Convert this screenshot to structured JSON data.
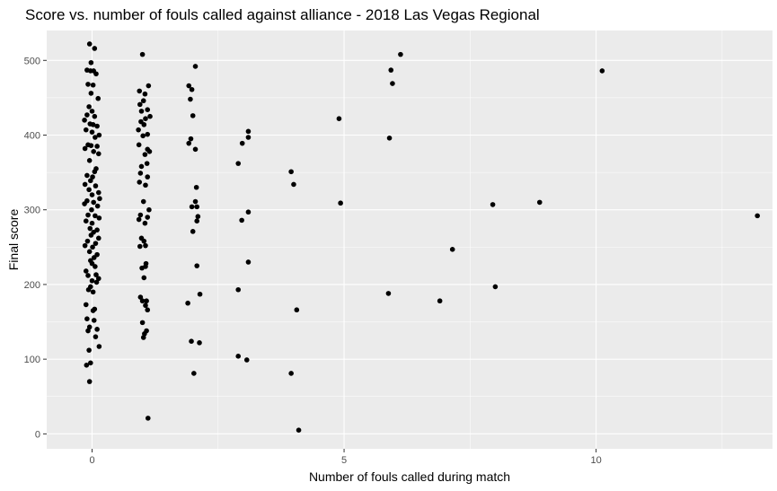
{
  "colors": {
    "panel": "#ebebeb",
    "grid_major": "#ffffff",
    "point": "#000000",
    "tick": "#333333"
  },
  "chart_data": {
    "type": "scatter",
    "title": "Score vs. number of fouls called against alliance - 2018 Las Vegas Regional",
    "xlabel": "Number of fouls called during match",
    "ylabel": "Final score",
    "xlim": [
      -0.9,
      13.5
    ],
    "ylim": [
      -20,
      540
    ],
    "xticks": [
      0,
      5,
      10
    ],
    "yticks": [
      0,
      100,
      200,
      300,
      400,
      500
    ],
    "grid": true,
    "legend": "none",
    "points": [
      [
        -0.05,
        522
      ],
      [
        0.05,
        516
      ],
      [
        -0.02,
        497
      ],
      [
        -0.1,
        487
      ],
      [
        -0.03,
        486
      ],
      [
        0.03,
        486
      ],
      [
        0.08,
        482
      ],
      [
        -0.08,
        468
      ],
      [
        0.02,
        467
      ],
      [
        -0.02,
        456
      ],
      [
        0.12,
        449
      ],
      [
        -0.06,
        438
      ],
      [
        0.0,
        432
      ],
      [
        -0.1,
        427
      ],
      [
        0.05,
        425
      ],
      [
        -0.15,
        420
      ],
      [
        -0.04,
        415
      ],
      [
        0.02,
        414
      ],
      [
        0.1,
        412
      ],
      [
        -0.12,
        407
      ],
      [
        0.0,
        404
      ],
      [
        0.14,
        400
      ],
      [
        0.06,
        397
      ],
      [
        -0.08,
        387
      ],
      [
        -0.02,
        386
      ],
      [
        0.1,
        385
      ],
      [
        -0.14,
        382
      ],
      [
        0.03,
        378
      ],
      [
        0.13,
        375
      ],
      [
        -0.05,
        366
      ],
      [
        0.08,
        355
      ],
      [
        0.05,
        351
      ],
      [
        -0.1,
        346
      ],
      [
        0.01,
        344
      ],
      [
        -0.03,
        339
      ],
      [
        -0.14,
        334
      ],
      [
        0.07,
        332
      ],
      [
        0.13,
        323
      ],
      [
        -0.06,
        327
      ],
      [
        0.0,
        320
      ],
      [
        -0.1,
        312
      ],
      [
        0.03,
        310
      ],
      [
        0.15,
        315
      ],
      [
        -0.15,
        308
      ],
      [
        0.11,
        305
      ],
      [
        -0.01,
        300
      ],
      [
        -0.08,
        293
      ],
      [
        0.06,
        292
      ],
      [
        0.14,
        289
      ],
      [
        -0.12,
        285
      ],
      [
        0.0,
        282
      ],
      [
        -0.04,
        275
      ],
      [
        0.1,
        273
      ],
      [
        0.03,
        270
      ],
      [
        -0.02,
        266
      ],
      [
        0.13,
        262
      ],
      [
        -0.09,
        258
      ],
      [
        0.07,
        255
      ],
      [
        -0.14,
        252
      ],
      [
        0.01,
        250
      ],
      [
        -0.05,
        244
      ],
      [
        0.1,
        240
      ],
      [
        0.04,
        236
      ],
      [
        -0.03,
        232
      ],
      [
        0.0,
        228
      ],
      [
        0.06,
        224
      ],
      [
        -0.12,
        218
      ],
      [
        0.08,
        213
      ],
      [
        -0.08,
        212
      ],
      [
        0.13,
        208
      ],
      [
        0.0,
        205
      ],
      [
        0.09,
        203
      ],
      [
        -0.03,
        197
      ],
      [
        -0.07,
        193
      ],
      [
        0.02,
        190
      ],
      [
        -0.12,
        173
      ],
      [
        0.05,
        167
      ],
      [
        0.02,
        165
      ],
      [
        -0.1,
        154
      ],
      [
        0.04,
        152
      ],
      [
        -0.05,
        143
      ],
      [
        0.1,
        140
      ],
      [
        -0.08,
        138
      ],
      [
        0.07,
        130
      ],
      [
        0.14,
        117
      ],
      [
        -0.06,
        112
      ],
      [
        -0.03,
        95
      ],
      [
        -0.11,
        92
      ],
      [
        -0.05,
        70
      ],
      [
        1.0,
        508
      ],
      [
        1.12,
        466
      ],
      [
        0.94,
        459
      ],
      [
        1.05,
        455
      ],
      [
        1.02,
        446
      ],
      [
        0.95,
        441
      ],
      [
        1.1,
        434
      ],
      [
        0.98,
        432
      ],
      [
        1.15,
        425
      ],
      [
        1.06,
        422
      ],
      [
        0.97,
        418
      ],
      [
        1.03,
        414
      ],
      [
        0.92,
        407
      ],
      [
        1.1,
        401
      ],
      [
        1.01,
        399
      ],
      [
        0.93,
        387
      ],
      [
        1.1,
        381
      ],
      [
        1.14,
        378
      ],
      [
        1.05,
        374
      ],
      [
        1.09,
        362
      ],
      [
        0.98,
        358
      ],
      [
        0.96,
        349
      ],
      [
        1.1,
        344
      ],
      [
        0.94,
        337
      ],
      [
        1.06,
        333
      ],
      [
        1.02,
        311
      ],
      [
        1.13,
        300
      ],
      [
        0.96,
        293
      ],
      [
        1.1,
        290
      ],
      [
        0.93,
        287
      ],
      [
        1.05,
        282
      ],
      [
        0.98,
        262
      ],
      [
        1.03,
        258
      ],
      [
        1.06,
        252
      ],
      [
        0.95,
        251
      ],
      [
        1.07,
        228
      ],
      [
        1.06,
        224
      ],
      [
        0.99,
        222
      ],
      [
        1.03,
        209
      ],
      [
        0.96,
        183
      ],
      [
        1.0,
        178
      ],
      [
        1.08,
        178
      ],
      [
        1.06,
        172
      ],
      [
        1.1,
        166
      ],
      [
        1.0,
        149
      ],
      [
        1.08,
        138
      ],
      [
        1.04,
        134
      ],
      [
        1.02,
        129
      ],
      [
        1.11,
        21
      ],
      [
        2.05,
        492
      ],
      [
        1.92,
        466
      ],
      [
        1.98,
        461
      ],
      [
        1.95,
        448
      ],
      [
        2.0,
        426
      ],
      [
        1.96,
        395
      ],
      [
        1.92,
        389
      ],
      [
        2.05,
        381
      ],
      [
        2.07,
        330
      ],
      [
        2.05,
        311
      ],
      [
        1.98,
        304
      ],
      [
        2.08,
        304
      ],
      [
        2.1,
        291
      ],
      [
        2.08,
        285
      ],
      [
        2.0,
        271
      ],
      [
        2.08,
        225
      ],
      [
        2.14,
        187
      ],
      [
        1.9,
        175
      ],
      [
        1.97,
        124
      ],
      [
        2.13,
        122
      ],
      [
        2.02,
        81
      ],
      [
        3.1,
        405
      ],
      [
        3.1,
        397
      ],
      [
        2.98,
        389
      ],
      [
        2.9,
        362
      ],
      [
        3.1,
        297
      ],
      [
        2.97,
        286
      ],
      [
        3.1,
        230
      ],
      [
        2.9,
        193
      ],
      [
        2.9,
        104
      ],
      [
        3.07,
        99
      ],
      [
        3.95,
        351
      ],
      [
        4.0,
        334
      ],
      [
        4.06,
        166
      ],
      [
        3.95,
        81
      ],
      [
        4.1,
        5
      ],
      [
        4.9,
        422
      ],
      [
        4.93,
        309
      ],
      [
        6.12,
        508
      ],
      [
        5.93,
        487
      ],
      [
        5.96,
        469
      ],
      [
        5.9,
        396
      ],
      [
        5.88,
        188
      ],
      [
        7.15,
        247
      ],
      [
        6.9,
        178
      ],
      [
        7.95,
        307
      ],
      [
        8.0,
        197
      ],
      [
        8.88,
        310
      ],
      [
        10.12,
        486
      ],
      [
        13.2,
        292
      ]
    ]
  }
}
